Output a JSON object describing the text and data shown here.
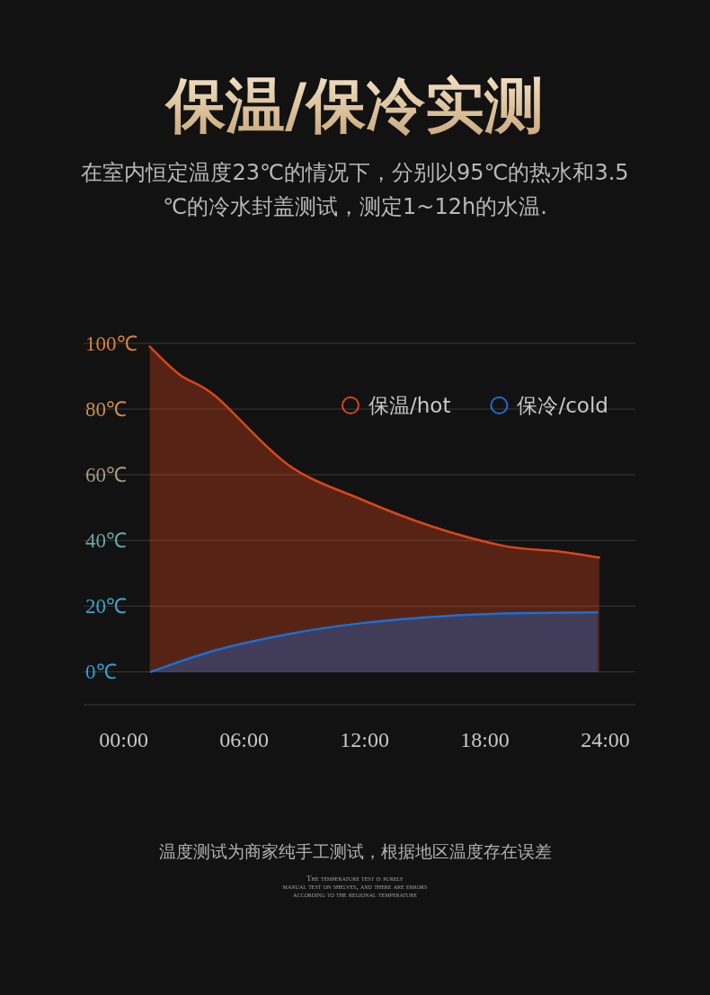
{
  "chart_data": {
    "type": "area",
    "title": "保温/保冷实测",
    "subtitle": "在室内恒定温度23℃的情况下，分别以95℃的热水和3.5℃的冷水封盖测试，测定1~12h的水温.",
    "annotations": [
      "温度测试为商家纯手工测试，根据地区温度存在误差",
      "The temperature test is purely manual test on shelves, and there are errors according to the regional temperature"
    ],
    "xlim": [
      -2,
      25.5
    ],
    "xticks": [
      {
        "value": 0,
        "label": "00:00"
      },
      {
        "value": 6,
        "label": "06:00"
      },
      {
        "value": 12,
        "label": "12:00"
      },
      {
        "value": 18,
        "label": "18:00"
      },
      {
        "value": 24,
        "label": "24:00"
      }
    ],
    "ylim": [
      -10,
      100
    ],
    "yticks": [
      {
        "value": 0,
        "label": "0℃"
      },
      {
        "value": 20,
        "label": "20℃"
      },
      {
        "value": 40,
        "label": "40℃"
      },
      {
        "value": 60,
        "label": "60℃"
      },
      {
        "value": 80,
        "label": "80℃"
      },
      {
        "value": 100,
        "label": "100℃"
      }
    ],
    "grid": "y",
    "legend": "top right",
    "marker": "none",
    "line_style": "solid",
    "series": [
      {
        "name": "保温/hot",
        "color": "#d9461c",
        "x": [
          1.3,
          2.8,
          4.6,
          8.2,
          11.8,
          15.3,
          18.9,
          21.6,
          23.7
        ],
        "values": [
          99,
          90.4,
          83.8,
          63,
          52.6,
          44.4,
          38.4,
          36.7,
          34.8
        ]
      },
      {
        "name": "保冷/cold",
        "color": "#1a6fd6",
        "x": [
          1.35,
          4.6,
          8.2,
          11.8,
          15.3,
          18.9,
          23.6
        ],
        "values": [
          0,
          6.6,
          11.5,
          14.8,
          16.7,
          17.8,
          18.1
        ]
      }
    ]
  }
}
